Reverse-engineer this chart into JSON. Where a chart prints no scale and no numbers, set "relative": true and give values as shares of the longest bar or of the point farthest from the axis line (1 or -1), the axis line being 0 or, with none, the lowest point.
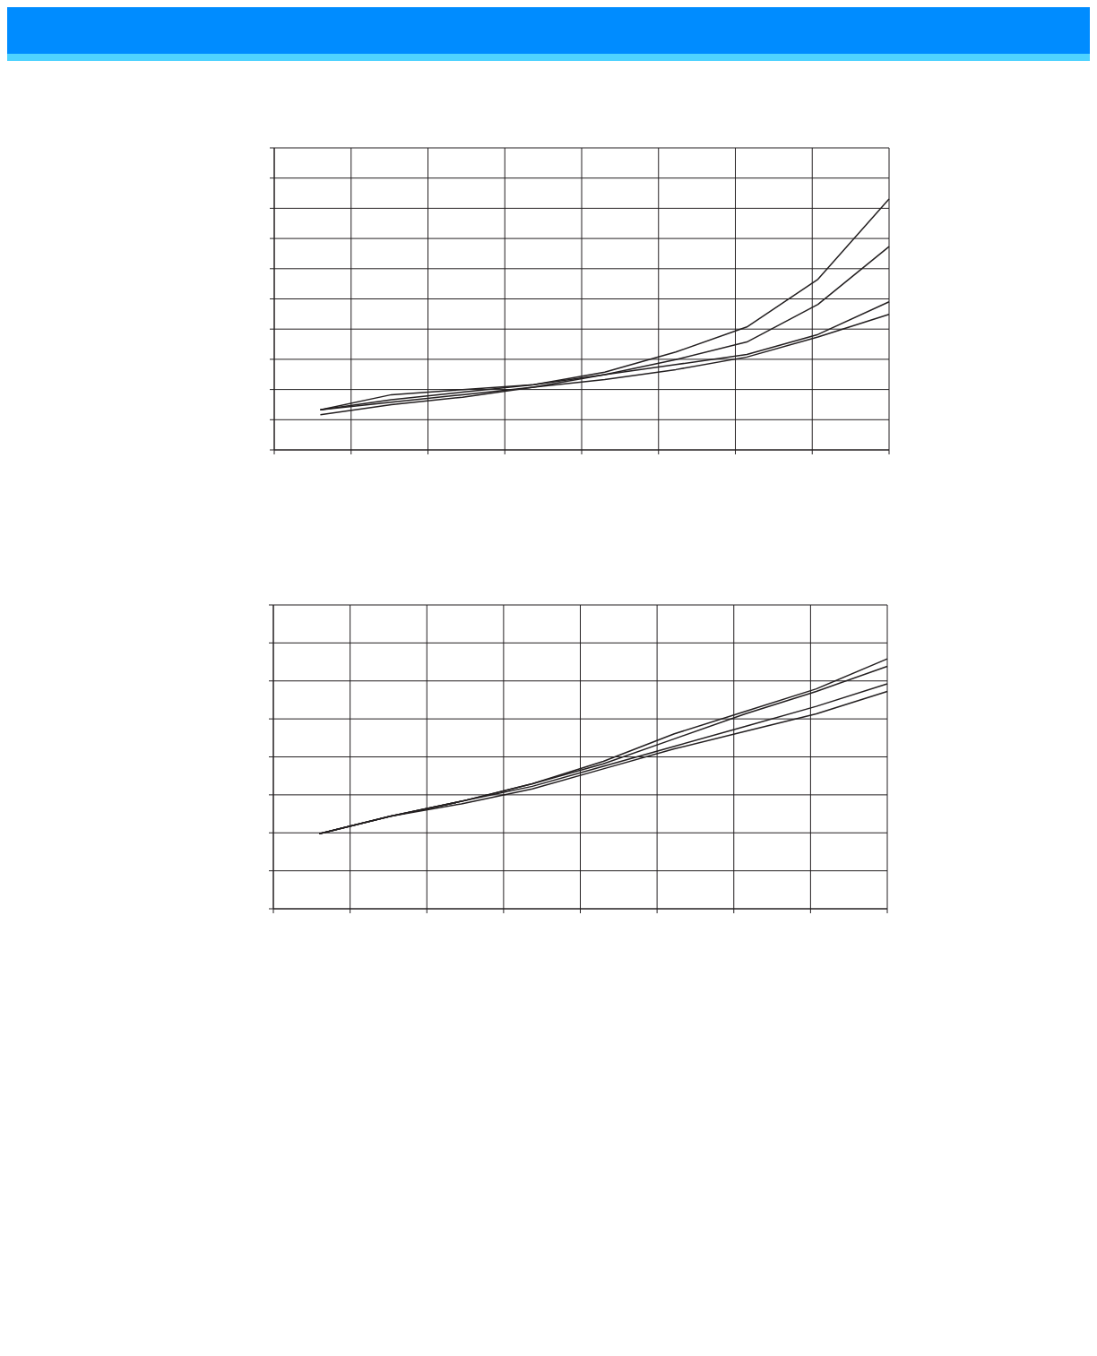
{
  "chart_data": [
    {
      "type": "line",
      "relative": true,
      "categories": [
        null,
        null,
        null,
        null,
        null,
        null,
        null,
        null,
        null
      ],
      "grid": true,
      "series": [
        {
          "color": "#231f20",
          "values": [
            0.16,
            0.2,
            0.23,
            0.26,
            0.31,
            0.39,
            0.49,
            0.68,
            1
          ]
        },
        {
          "color": "#231f20",
          "values": [
            0.16,
            0.19,
            0.22,
            0.25,
            0.3,
            0.36,
            0.43,
            0.58,
            0.81
          ]
        },
        {
          "color": "#231f20",
          "values": [
            0.16,
            0.22,
            0.24,
            0.26,
            0.3,
            0.34,
            0.38,
            0.46,
            0.59
          ]
        },
        {
          "color": "#231f20",
          "values": [
            0.14,
            0.18,
            0.21,
            0.25,
            0.28,
            0.32,
            0.37,
            0.45,
            0.54
          ]
        }
      ]
    },
    {
      "type": "line",
      "relative": true,
      "categories": [
        null,
        null,
        null,
        null,
        null,
        null,
        null,
        null,
        null
      ],
      "grid": true,
      "series": [
        {
          "color": "#231f20",
          "values": [
            0.3,
            0.37,
            0.43,
            0.5,
            0.59,
            0.7,
            0.79,
            0.88,
            1
          ]
        },
        {
          "color": "#231f20",
          "values": [
            0.3,
            0.37,
            0.43,
            0.5,
            0.58,
            0.68,
            0.78,
            0.87,
            0.97
          ]
        },
        {
          "color": "#231f20",
          "values": [
            0.3,
            0.37,
            0.43,
            0.49,
            0.57,
            0.65,
            0.73,
            0.81,
            0.9
          ]
        },
        {
          "color": "#231f20",
          "values": [
            0.3,
            0.37,
            0.42,
            0.48,
            0.56,
            0.64,
            0.71,
            0.78,
            0.87
          ]
        }
      ]
    }
  ]
}
